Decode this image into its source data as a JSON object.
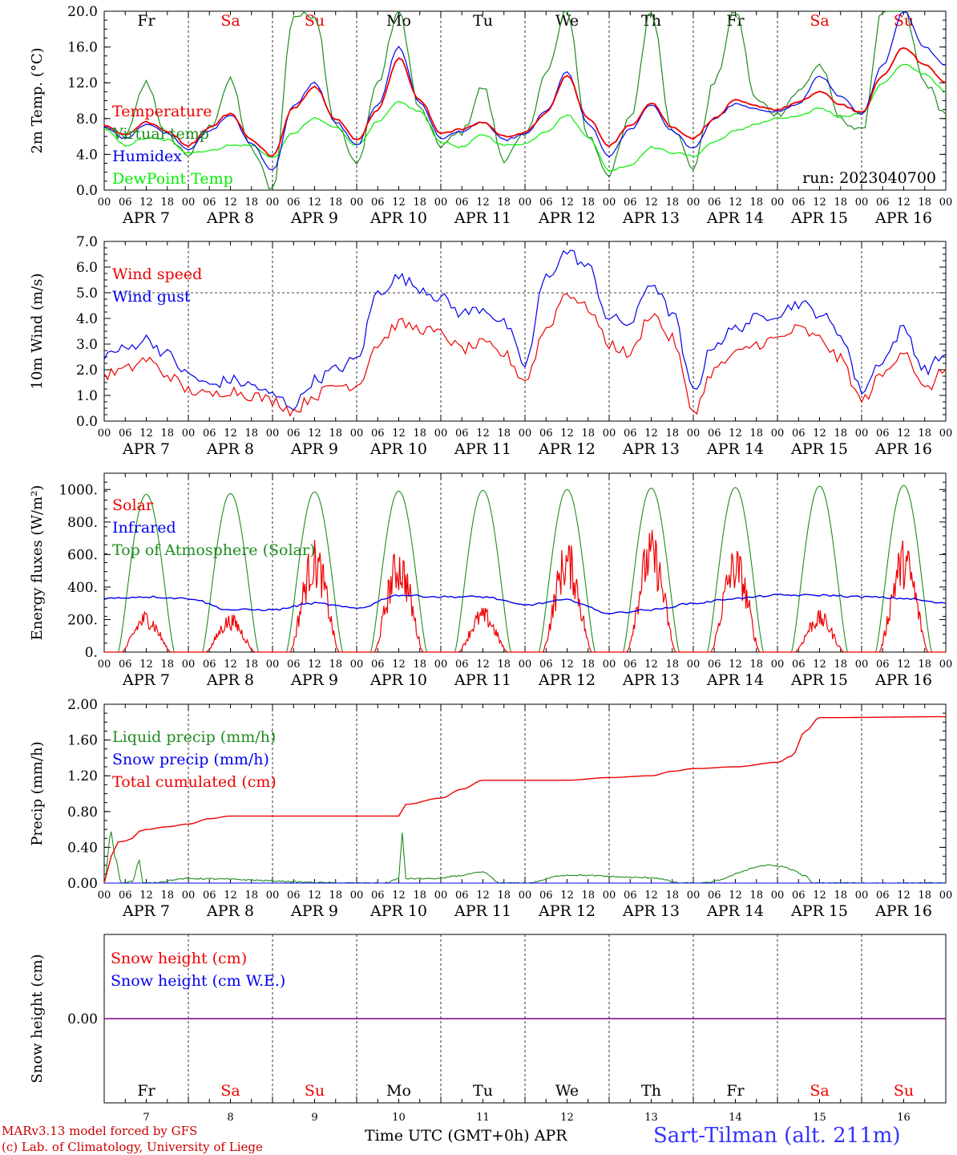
{
  "run_label": "run: 2023040700",
  "footer": {
    "credit_model": "MARv3.13 model forced by GFS",
    "credit_lab": "(c) Lab. of Climatology, University of Liege",
    "x_axis_title": "Time UTC (GMT+0h) APR",
    "station": "Sart-Tilman (alt. 211m)"
  },
  "weekday_labels": [
    "Fr",
    "Sa",
    "Su",
    "Mo",
    "Tu",
    "We",
    "Th",
    "Fr",
    "Sa",
    "Su"
  ],
  "weekend_flags": [
    false,
    true,
    true,
    false,
    false,
    false,
    false,
    false,
    true,
    true
  ],
  "date_labels": [
    "APR  7",
    "APR  8",
    "APR  9",
    "APR 10",
    "APR 11",
    "APR 12",
    "APR 13",
    "APR 14",
    "APR 15",
    "APR 16"
  ],
  "hour_labels": [
    "00",
    "06",
    "12",
    "18"
  ],
  "day_numbers": [
    "7",
    "8",
    "9",
    "10",
    "11",
    "12",
    "13",
    "14",
    "15",
    "16"
  ],
  "colors": {
    "red": "#ee0000",
    "blue": "#0000ee",
    "green": "#008800",
    "lightgreen": "#00ee00",
    "purple": "#800080",
    "dark_green": "#1e8c1e"
  },
  "chart_data": [
    {
      "type": "line",
      "ylabel": "2m Temp. (°C)",
      "ylim": [
        0,
        20
      ],
      "yticks": [
        "0.0",
        "4.0",
        "8.0",
        "12.0",
        "16.0",
        "20.0"
      ],
      "x_unit": "hours since APR 7 00 UTC",
      "grid": "dotted vertical lines at 00 UTC",
      "series": [
        {
          "name": "Temperature",
          "color": "#ee0000",
          "x": [
            0,
            6,
            12,
            18,
            24,
            30,
            36,
            42,
            48,
            54,
            60,
            66,
            72,
            78,
            84,
            90,
            96,
            102,
            108,
            114,
            120,
            126,
            132,
            138,
            144,
            150,
            156,
            162,
            168,
            174,
            180,
            186,
            192,
            198,
            204,
            210,
            216,
            222,
            228,
            234,
            240
          ],
          "values": [
            7.2,
            6.2,
            7.6,
            6.6,
            5.0,
            7.0,
            8.6,
            5.6,
            3.8,
            9.2,
            11.6,
            8.0,
            5.6,
            9.0,
            14.8,
            10.0,
            6.4,
            6.8,
            7.6,
            6.0,
            6.4,
            8.6,
            12.8,
            8.0,
            5.0,
            7.2,
            9.8,
            7.0,
            5.8,
            8.0,
            10.0,
            9.4,
            9.0,
            9.8,
            11.0,
            9.6,
            8.6,
            12.8,
            16.0,
            14.0,
            12.0
          ]
        },
        {
          "name": "Virtual temp",
          "color": "#1e8c1e",
          "x": [
            0,
            6,
            12,
            18,
            24,
            30,
            36,
            42,
            48,
            54,
            60,
            66,
            72,
            78,
            84,
            90,
            96,
            102,
            108,
            114,
            120,
            126,
            132,
            138,
            144,
            150,
            156,
            162,
            168,
            174,
            180,
            186,
            192,
            198,
            204,
            210,
            216,
            222,
            228,
            234,
            240
          ],
          "values": [
            7.0,
            6.0,
            12.0,
            6.0,
            4.0,
            7.0,
            12.2,
            4.5,
            0.2,
            19.5,
            19.6,
            7.5,
            2.8,
            12.0,
            20.0,
            9.0,
            5.0,
            6.5,
            11.5,
            3.5,
            6.0,
            13.0,
            20.0,
            6.0,
            1.8,
            8.0,
            20.0,
            7.0,
            2.5,
            12.0,
            20.0,
            10.0,
            8.5,
            11.0,
            14.0,
            8.0,
            6.5,
            20.0,
            20.0,
            12.0,
            8.5
          ]
        },
        {
          "name": "Humidex",
          "color": "#0000ee",
          "x": [
            0,
            6,
            12,
            18,
            24,
            30,
            36,
            42,
            48,
            54,
            60,
            66,
            72,
            78,
            84,
            90,
            96,
            102,
            108,
            114,
            120,
            126,
            132,
            138,
            144,
            150,
            156,
            162,
            168,
            174,
            180,
            186,
            192,
            198,
            204,
            210,
            216,
            222,
            228,
            234,
            240
          ],
          "values": [
            7.0,
            5.8,
            7.4,
            6.4,
            4.6,
            6.6,
            8.4,
            5.2,
            2.2,
            9.4,
            12.0,
            7.6,
            5.0,
            9.6,
            16.0,
            9.8,
            5.8,
            6.6,
            7.6,
            5.6,
            6.2,
            8.8,
            13.2,
            7.4,
            3.8,
            6.8,
            9.6,
            6.6,
            4.6,
            8.0,
            9.6,
            9.0,
            8.8,
            9.6,
            12.8,
            10.4,
            8.4,
            14.0,
            20.0,
            16.0,
            14.0
          ]
        },
        {
          "name": "DewPoint Temp",
          "color": "#00ee00",
          "x": [
            0,
            6,
            12,
            18,
            24,
            30,
            36,
            42,
            48,
            54,
            60,
            66,
            72,
            78,
            84,
            90,
            96,
            102,
            108,
            114,
            120,
            126,
            132,
            138,
            144,
            150,
            156,
            162,
            168,
            174,
            180,
            186,
            192,
            198,
            204,
            210,
            216,
            222,
            228,
            234,
            240
          ],
          "values": [
            6.8,
            5.0,
            5.8,
            5.6,
            4.2,
            4.4,
            5.0,
            5.0,
            3.6,
            6.4,
            8.0,
            7.0,
            5.0,
            7.6,
            9.8,
            8.8,
            5.4,
            4.8,
            6.2,
            5.0,
            5.2,
            6.6,
            8.4,
            6.0,
            2.2,
            2.8,
            4.8,
            4.2,
            3.8,
            5.4,
            6.6,
            7.4,
            8.0,
            8.2,
            9.2,
            8.2,
            8.6,
            12.0,
            14.0,
            13.0,
            11.0
          ]
        }
      ]
    },
    {
      "type": "line",
      "ylabel": "10m Wind (m/s)",
      "ylim": [
        0,
        7
      ],
      "yticks": [
        "0.0",
        "1.0",
        "2.0",
        "3.0",
        "4.0",
        "5.0",
        "6.0",
        "7.0"
      ],
      "x_unit": "hours since APR 7 00 UTC",
      "grid": "dotted vertical lines at 00 UTC, dashed horizontal line at 5.0",
      "series": [
        {
          "name": "Wind speed",
          "color": "#ee0000",
          "x": [
            0,
            6,
            12,
            18,
            24,
            30,
            36,
            42,
            48,
            54,
            60,
            66,
            72,
            78,
            84,
            90,
            96,
            102,
            108,
            114,
            120,
            126,
            132,
            138,
            144,
            150,
            156,
            162,
            168,
            174,
            180,
            186,
            192,
            198,
            204,
            210,
            216,
            222,
            228,
            234,
            240
          ],
          "values": [
            1.8,
            2.0,
            2.4,
            1.8,
            1.2,
            1.0,
            1.2,
            1.0,
            0.8,
            0.4,
            1.0,
            1.4,
            1.4,
            3.0,
            3.8,
            3.6,
            3.4,
            2.8,
            3.0,
            2.6,
            1.6,
            3.6,
            5.0,
            4.4,
            3.0,
            2.6,
            4.2,
            3.2,
            0.4,
            2.0,
            2.6,
            3.0,
            3.2,
            3.6,
            3.2,
            2.4,
            0.8,
            1.8,
            2.8,
            1.2,
            2.0
          ]
        },
        {
          "name": "Wind gust",
          "color": "#0000ee",
          "x": [
            0,
            6,
            12,
            18,
            24,
            30,
            36,
            42,
            48,
            54,
            60,
            66,
            72,
            78,
            84,
            90,
            96,
            102,
            108,
            114,
            120,
            126,
            132,
            138,
            144,
            150,
            156,
            162,
            168,
            174,
            180,
            186,
            192,
            198,
            204,
            210,
            216,
            222,
            228,
            234,
            240
          ],
          "values": [
            2.6,
            2.8,
            3.2,
            2.6,
            1.8,
            1.4,
            1.6,
            1.4,
            1.0,
            0.6,
            1.6,
            2.0,
            2.4,
            5.0,
            5.6,
            5.2,
            4.8,
            4.2,
            4.4,
            3.8,
            2.2,
            5.6,
            6.6,
            6.0,
            4.0,
            3.8,
            5.4,
            4.2,
            1.2,
            3.0,
            3.6,
            4.0,
            4.2,
            4.6,
            4.2,
            3.4,
            1.2,
            2.4,
            3.6,
            2.0,
            2.6
          ]
        }
      ]
    },
    {
      "type": "line",
      "ylabel": "Energy fluxes (W/m²)",
      "ylim": [
        0,
        1100
      ],
      "yticks": [
        "0.",
        "200.",
        "400.",
        "600.",
        "800.",
        "1000."
      ],
      "x_unit": "hours since APR 7 00 UTC",
      "series": [
        {
          "name": "Solar",
          "color": "#ee0000",
          "daily_peak": [
            260,
            240,
            700,
            660,
            280,
            700,
            760,
            660,
            260,
            700
          ]
        },
        {
          "name": "Infrared",
          "color": "#0000ee",
          "x": [
            0,
            12,
            24,
            36,
            48,
            60,
            72,
            84,
            96,
            108,
            120,
            132,
            144,
            156,
            168,
            180,
            192,
            204,
            216,
            228,
            240
          ],
          "values": [
            330,
            340,
            330,
            260,
            260,
            300,
            270,
            350,
            340,
            340,
            290,
            320,
            240,
            260,
            300,
            330,
            350,
            350,
            340,
            330,
            300
          ]
        },
        {
          "name": "Top of Atmosphere (Solar)",
          "color": "#1e8c1e",
          "daily_peak": [
            970,
            975,
            985,
            990,
            995,
            1000,
            1008,
            1012,
            1020,
            1025
          ]
        }
      ]
    },
    {
      "type": "line",
      "ylabel": "Precip (mm/h)",
      "ylim": [
        0,
        2
      ],
      "yticks": [
        "0.00",
        "0.40",
        "0.80",
        "1.20",
        "1.60",
        "2.00"
      ],
      "x_unit": "hours since APR 7 00 UTC",
      "series": [
        {
          "name": "Liquid precip (mm/h)",
          "color": "#1e8c1e",
          "x": [
            0,
            2,
            3,
            5,
            8,
            10,
            11,
            12,
            24,
            72,
            80,
            84,
            85,
            86,
            96,
            100,
            108,
            113,
            120,
            132,
            156,
            165,
            170,
            190,
            194,
            196,
            200,
            202,
            240
          ],
          "values": [
            0,
            0.58,
            0.3,
            0,
            0.02,
            0.25,
            0,
            0,
            0.05,
            0,
            0,
            0.05,
            0.56,
            0.05,
            0.05,
            0.08,
            0.12,
            0,
            0,
            0.09,
            0.06,
            0,
            0,
            0.2,
            0.18,
            0.15,
            0.08,
            0,
            0
          ]
        },
        {
          "name": "Snow precip (mm/h)",
          "color": "#0000ee",
          "x": [
            0,
            240
          ],
          "values": [
            0,
            0
          ]
        },
        {
          "name": "Total cumulated (cm)",
          "color": "#ee0000",
          "x": [
            0,
            2,
            4,
            6,
            8,
            10,
            12,
            18,
            24,
            30,
            36,
            48,
            60,
            72,
            84,
            86,
            96,
            102,
            108,
            120,
            132,
            144,
            156,
            162,
            168,
            180,
            192,
            196,
            200,
            204,
            240
          ],
          "values": [
            0,
            0.3,
            0.46,
            0.47,
            0.5,
            0.58,
            0.6,
            0.63,
            0.66,
            0.72,
            0.75,
            0.75,
            0.75,
            0.75,
            0.75,
            0.88,
            0.95,
            1.05,
            1.15,
            1.15,
            1.15,
            1.18,
            1.2,
            1.25,
            1.28,
            1.3,
            1.35,
            1.42,
            1.7,
            1.85,
            1.86
          ]
        }
      ]
    },
    {
      "type": "line",
      "ylabel": "Snow height (cm)",
      "yticks": [
        "0.00"
      ],
      "x_unit": "hours since APR 7 00 UTC",
      "series": [
        {
          "name": "Snow height (cm)",
          "color": "#ee0000",
          "x": [
            0,
            240
          ],
          "values": [
            0,
            0
          ]
        },
        {
          "name": "Snow height (cm W.E.)",
          "color": "#0000ee",
          "x": [
            0,
            240
          ],
          "values": [
            0,
            0
          ]
        }
      ]
    }
  ]
}
